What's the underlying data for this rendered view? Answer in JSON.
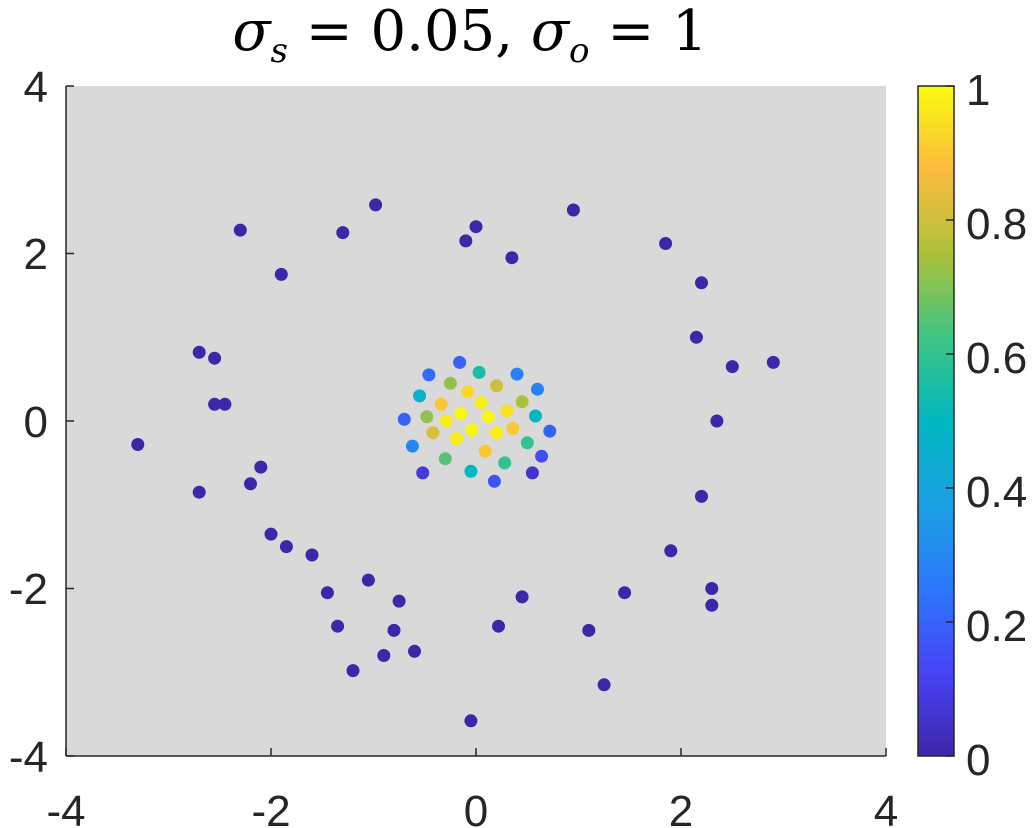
{
  "chart_data": {
    "type": "scatter",
    "title": {
      "sym1": "σ",
      "sub1": "s",
      "eq1": " = 0.05, ",
      "sym2": "σ",
      "sub2": "o",
      "eq2": " = 1"
    },
    "xlabel": "",
    "ylabel": "",
    "xlim": [
      -4,
      4
    ],
    "ylim": [
      -4,
      4
    ],
    "x_ticks": [
      "-4",
      "-2",
      "0",
      "2",
      "4"
    ],
    "y_ticks": [
      "4",
      "2",
      "0",
      "-2",
      "-4"
    ],
    "colorbar": {
      "range": [
        0,
        1
      ],
      "ticks": [
        "1",
        "0.8",
        "0.6",
        "0.4",
        "0.2",
        "0"
      ],
      "colormap": "parula"
    },
    "colors": {
      "plot_background": "#d9d9d9",
      "axis": "#262626",
      "low": "#3e26a8",
      "high": "#f9fb0e"
    },
    "marker": "filled-circle",
    "series": [
      {
        "points": [
          {
            "x": -0.29,
            "y": 0.0,
            "v": 0.97
          },
          {
            "x": -0.15,
            "y": 0.09,
            "v": 0.99
          },
          {
            "x": -0.04,
            "y": -0.11,
            "v": 0.99
          },
          {
            "x": 0.12,
            "y": 0.05,
            "v": 0.99
          },
          {
            "x": 0.2,
            "y": -0.14,
            "v": 0.98
          },
          {
            "x": 0.05,
            "y": 0.22,
            "v": 0.98
          },
          {
            "x": -0.19,
            "y": -0.21,
            "v": 0.97
          },
          {
            "x": 0.3,
            "y": 0.12,
            "v": 0.95
          },
          {
            "x": -0.34,
            "y": 0.2,
            "v": 0.9
          },
          {
            "x": 0.36,
            "y": -0.09,
            "v": 0.9
          },
          {
            "x": -0.08,
            "y": 0.35,
            "v": 0.93
          },
          {
            "x": 0.09,
            "y": -0.36,
            "v": 0.9
          },
          {
            "x": -0.42,
            "y": -0.14,
            "v": 0.82
          },
          {
            "x": 0.45,
            "y": 0.23,
            "v": 0.75
          },
          {
            "x": 0.2,
            "y": 0.42,
            "v": 0.8
          },
          {
            "x": -0.25,
            "y": 0.45,
            "v": 0.72
          },
          {
            "x": -0.48,
            "y": 0.05,
            "v": 0.72
          },
          {
            "x": 0.5,
            "y": -0.26,
            "v": 0.6
          },
          {
            "x": -0.3,
            "y": -0.45,
            "v": 0.65
          },
          {
            "x": 0.28,
            "y": -0.5,
            "v": 0.6
          },
          {
            "x": -0.55,
            "y": 0.3,
            "v": 0.45
          },
          {
            "x": 0.58,
            "y": 0.06,
            "v": 0.5
          },
          {
            "x": 0.03,
            "y": 0.58,
            "v": 0.55
          },
          {
            "x": -0.05,
            "y": -0.6,
            "v": 0.5
          },
          {
            "x": -0.62,
            "y": -0.3,
            "v": 0.3
          },
          {
            "x": 0.6,
            "y": 0.38,
            "v": 0.28
          },
          {
            "x": 0.4,
            "y": 0.56,
            "v": 0.28
          },
          {
            "x": -0.46,
            "y": 0.55,
            "v": 0.22
          },
          {
            "x": 0.64,
            "y": -0.42,
            "v": 0.15
          },
          {
            "x": -0.16,
            "y": 0.7,
            "v": 0.2
          },
          {
            "x": 0.18,
            "y": -0.72,
            "v": 0.16
          },
          {
            "x": -0.7,
            "y": 0.02,
            "v": 0.2
          },
          {
            "x": 0.72,
            "y": -0.12,
            "v": 0.2
          },
          {
            "x": -0.52,
            "y": -0.62,
            "v": 0.08
          },
          {
            "x": 0.55,
            "y": -0.62,
            "v": 0.06
          },
          {
            "x": -3.3,
            "y": -0.28,
            "v": 0.0
          },
          {
            "x": -2.7,
            "y": 0.82,
            "v": 0.0
          },
          {
            "x": -2.7,
            "y": -0.85,
            "v": 0.0
          },
          {
            "x": -2.55,
            "y": 0.75,
            "v": 0.0
          },
          {
            "x": -2.55,
            "y": 0.2,
            "v": 0.0
          },
          {
            "x": -2.3,
            "y": 2.28,
            "v": 0.0
          },
          {
            "x": -2.45,
            "y": 0.2,
            "v": 0.0
          },
          {
            "x": -2.2,
            "y": -0.75,
            "v": 0.0
          },
          {
            "x": -2.1,
            "y": -0.55,
            "v": 0.0
          },
          {
            "x": -2.0,
            "y": -1.35,
            "v": 0.0
          },
          {
            "x": -1.9,
            "y": 1.75,
            "v": 0.0
          },
          {
            "x": -1.85,
            "y": -1.5,
            "v": 0.0
          },
          {
            "x": -1.6,
            "y": -1.6,
            "v": 0.0
          },
          {
            "x": -1.45,
            "y": -2.05,
            "v": 0.0
          },
          {
            "x": -1.35,
            "y": -2.45,
            "v": 0.0
          },
          {
            "x": -1.3,
            "y": 2.25,
            "v": 0.0
          },
          {
            "x": -1.2,
            "y": -2.98,
            "v": 0.0
          },
          {
            "x": -1.05,
            "y": -1.9,
            "v": 0.0
          },
          {
            "x": -0.98,
            "y": 2.58,
            "v": 0.0
          },
          {
            "x": -0.9,
            "y": -2.8,
            "v": 0.0
          },
          {
            "x": -0.8,
            "y": -2.5,
            "v": 0.0
          },
          {
            "x": -0.75,
            "y": -2.15,
            "v": 0.0
          },
          {
            "x": -0.6,
            "y": -2.75,
            "v": 0.0
          },
          {
            "x": -0.05,
            "y": -3.58,
            "v": 0.0
          },
          {
            "x": 0.0,
            "y": 2.32,
            "v": 0.0
          },
          {
            "x": -0.1,
            "y": 2.15,
            "v": 0.0
          },
          {
            "x": 0.35,
            "y": 1.95,
            "v": 0.0
          },
          {
            "x": 0.22,
            "y": -2.45,
            "v": 0.0
          },
          {
            "x": 0.45,
            "y": -2.1,
            "v": 0.0
          },
          {
            "x": 0.95,
            "y": 2.52,
            "v": 0.0
          },
          {
            "x": 1.1,
            "y": -2.5,
            "v": 0.0
          },
          {
            "x": 1.25,
            "y": -3.15,
            "v": 0.0
          },
          {
            "x": 1.45,
            "y": -2.05,
            "v": 0.0
          },
          {
            "x": 1.85,
            "y": 2.12,
            "v": 0.0
          },
          {
            "x": 2.2,
            "y": 1.65,
            "v": 0.0
          },
          {
            "x": 2.3,
            "y": -2.0,
            "v": 0.0
          },
          {
            "x": 2.3,
            "y": -2.2,
            "v": 0.0
          },
          {
            "x": 2.5,
            "y": 0.65,
            "v": 0.0
          },
          {
            "x": 2.9,
            "y": 0.7,
            "v": 0.0
          },
          {
            "x": 1.9,
            "y": -1.55,
            "v": 0.0
          },
          {
            "x": 2.2,
            "y": -0.9,
            "v": 0.0
          },
          {
            "x": 2.35,
            "y": 0.0,
            "v": 0.0
          },
          {
            "x": 2.15,
            "y": 1.0,
            "v": 0.0
          }
        ]
      }
    ]
  }
}
